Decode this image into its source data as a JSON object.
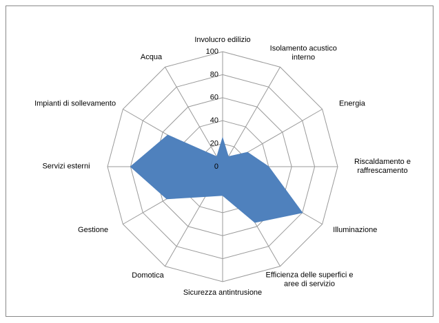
{
  "chart_data": {
    "type": "radar",
    "categories": [
      "Involucro edilizio",
      "Isolamento acustico interno",
      "Energia",
      "Riscaldamento e raffrescamento",
      "Illuminazione",
      "Efficienza delle superfici e aree di servizio",
      "Sicurezza antintrusione",
      "Domotica",
      "Gestione",
      "Servizi esterni",
      "Impianti di sollevamento",
      "Acqua"
    ],
    "values": [
      25,
      10,
      25,
      40,
      80,
      56,
      25,
      30,
      56,
      80,
      55,
      10
    ],
    "color": "#4f81bd",
    "ylim": [
      0,
      100
    ],
    "yticks": [
      0,
      20,
      40,
      60,
      80,
      100
    ],
    "grid": true
  }
}
